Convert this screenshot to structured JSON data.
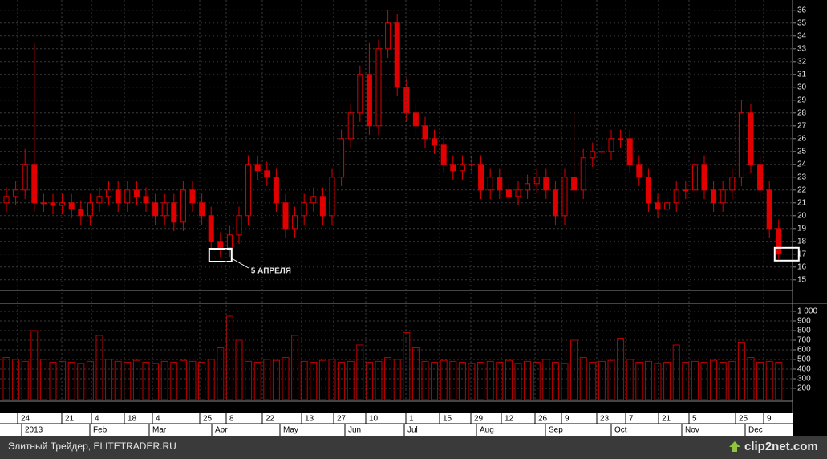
{
  "chart_data": [
    {
      "type": "candlestick",
      "open": [
        21,
        21.5,
        22,
        24,
        21,
        21,
        20.8,
        21,
        20.5,
        20,
        21,
        21.5,
        22,
        21,
        22,
        21.5,
        21,
        20,
        21,
        19.5,
        22,
        21,
        20,
        18,
        17.5,
        18.5,
        20,
        24,
        23.5,
        23,
        21,
        19,
        20,
        21,
        21.5,
        20,
        23,
        26,
        28,
        31,
        27,
        33,
        35,
        30,
        28,
        27,
        26,
        25.5,
        24,
        23.5,
        24,
        24,
        22,
        23,
        22,
        21.5,
        22,
        22.5,
        23,
        22,
        20,
        23,
        22,
        24.5,
        25,
        25,
        26,
        26,
        24,
        23,
        21,
        20.5,
        21,
        22,
        22,
        24,
        22,
        21,
        22,
        23,
        28,
        24,
        22,
        19
      ],
      "high": [
        22.2,
        22.7,
        25.2,
        33.5,
        21.7,
        21.7,
        21.7,
        21.7,
        21.2,
        21.7,
        22.2,
        22.7,
        22.7,
        22.7,
        22.7,
        22.2,
        21.7,
        21.7,
        21.7,
        22.7,
        22.7,
        21.7,
        20.7,
        18.7,
        19.2,
        20.7,
        24.7,
        24.7,
        24.2,
        23.7,
        21.7,
        20.7,
        21.7,
        22.2,
        22.2,
        23.7,
        26.7,
        28.7,
        31.7,
        33.5,
        33.7,
        36,
        35.7,
        30.7,
        28.7,
        27.7,
        26.7,
        26.2,
        24.7,
        24.7,
        24.7,
        24.7,
        23.7,
        23.7,
        22.7,
        22.7,
        23.2,
        23.7,
        23.7,
        22.7,
        23.7,
        28,
        25.2,
        25.7,
        25.7,
        26.7,
        26.7,
        26.7,
        24.7,
        23.7,
        21.7,
        21.7,
        22.7,
        22.7,
        24.7,
        24.7,
        22.7,
        22.7,
        23.7,
        29,
        28.7,
        24.7,
        22.7,
        19.7
      ],
      "low": [
        20.3,
        20.8,
        21.3,
        20.3,
        20.3,
        20.1,
        20.1,
        19.8,
        19.3,
        19.3,
        20.3,
        20.8,
        20.3,
        20.3,
        20.8,
        20.3,
        19.3,
        19.3,
        18.8,
        18.8,
        20.3,
        19.3,
        17.3,
        16.8,
        16.8,
        17.8,
        19.3,
        22.8,
        22.3,
        20.3,
        18.3,
        18.3,
        19.3,
        20.3,
        19.3,
        19.3,
        22.3,
        25.3,
        27.3,
        26.3,
        26.3,
        32.3,
        29.3,
        27.3,
        26.3,
        25.3,
        24.8,
        23.3,
        22.8,
        22.8,
        23.3,
        21.3,
        21.3,
        21.3,
        20.8,
        20.8,
        21.3,
        21.8,
        21.3,
        19.3,
        19.3,
        21.3,
        21.3,
        23.8,
        24.3,
        24.3,
        25.3,
        23.3,
        22.3,
        20.3,
        19.8,
        19.8,
        20.3,
        21.3,
        21.3,
        21.3,
        20.3,
        20.3,
        21.3,
        22.3,
        23.3,
        21.3,
        18.3,
        16.6
      ],
      "close": [
        21.5,
        22,
        24,
        21,
        21,
        20.8,
        21,
        20.5,
        20,
        21,
        21.5,
        22,
        21,
        22,
        21.5,
        21,
        20,
        21,
        19.5,
        22,
        21,
        20,
        18,
        17.5,
        18.5,
        20,
        24,
        23.5,
        23,
        21,
        19,
        20,
        21,
        21.5,
        20,
        23,
        26,
        28,
        31,
        27,
        33,
        35,
        30,
        28,
        27,
        26,
        25.5,
        24,
        23.5,
        24,
        24,
        22,
        23,
        22,
        21.5,
        22,
        22.5,
        23,
        22,
        20,
        23,
        22,
        24.5,
        25,
        25,
        26,
        26,
        24,
        23,
        21,
        20.5,
        21,
        22,
        22,
        24,
        22,
        21,
        22,
        23,
        28,
        24,
        22,
        19,
        17
      ],
      "color": "#e00000",
      "ylim": [
        14.3,
        36.8
      ],
      "yticks": [
        15,
        16,
        17,
        18,
        19,
        20,
        21,
        22,
        23,
        24,
        25,
        26,
        27,
        28,
        29,
        30,
        31,
        32,
        33,
        34,
        35,
        36
      ],
      "grid": true,
      "annotation": "5 АПРЕЛЯ"
    },
    {
      "type": "volume",
      "values": [
        520,
        500,
        480,
        800,
        500,
        470,
        480,
        470,
        460,
        480,
        750,
        500,
        480,
        470,
        490,
        470,
        460,
        480,
        470,
        490,
        480,
        470,
        500,
        620,
        950,
        700,
        480,
        470,
        500,
        490,
        520,
        750,
        480,
        470,
        490,
        500,
        470,
        480,
        650,
        470,
        480,
        520,
        500,
        780,
        620,
        480,
        470,
        490,
        480,
        470,
        460,
        470,
        480,
        470,
        490,
        460,
        480,
        470,
        500,
        470,
        460,
        700,
        520,
        470,
        480,
        490,
        720,
        500,
        470,
        480,
        460,
        470,
        650,
        470,
        480,
        470,
        490,
        470,
        480,
        680,
        520,
        470,
        480,
        470
      ],
      "color": "#c00000",
      "ylim": [
        83,
        1050
      ],
      "yticks": [
        {
          "value": 1000,
          "label": "1 000"
        },
        900,
        800,
        700,
        600,
        500,
        400,
        300,
        200
      ],
      "grid": true
    }
  ],
  "x_axis": {
    "day_labels": [
      "24",
      "21",
      "4",
      "18",
      "4",
      "25",
      "8",
      "22",
      "13",
      "27",
      "10",
      "1",
      "15",
      "29",
      "12",
      "26",
      "9",
      "23",
      "7",
      "21",
      "5",
      "25",
      "9"
    ],
    "month_labels": [
      "2013",
      "Feb",
      "Mar",
      "Apr",
      "May",
      "Jun",
      "Jul",
      "Aug",
      "Sep",
      "Oct",
      "Nov",
      "Dec"
    ]
  },
  "footer": {
    "source": "Элитный Трейдер, ELITETRADER.RU",
    "logo": "clip2net.com"
  }
}
